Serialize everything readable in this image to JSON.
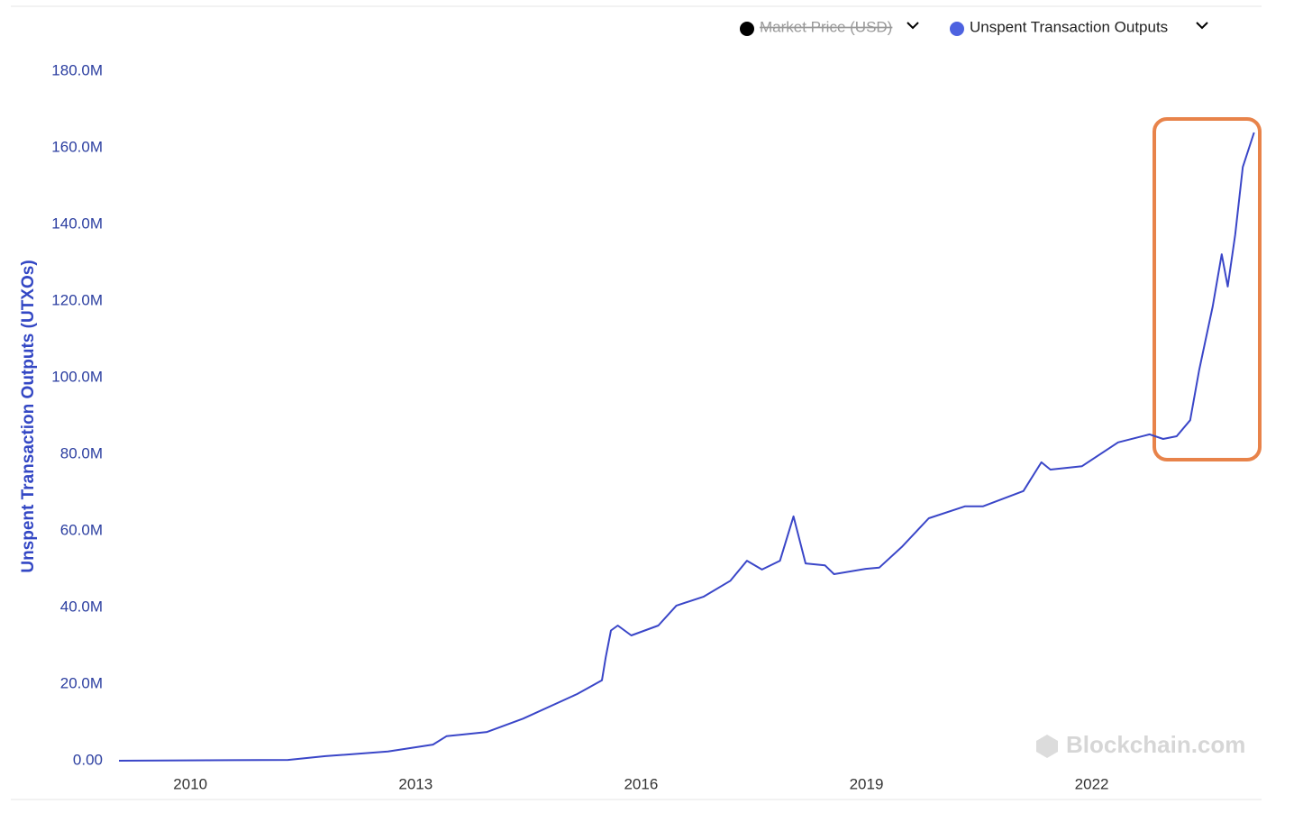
{
  "chart_data": {
    "type": "line",
    "y_label": "Unspent Transaction Outputs (UTXOs)",
    "watermark": "Blockchain.com",
    "hidden_series": {
      "name": "Market Price (USD)",
      "color": "#000000"
    },
    "x": [
      2009.05,
      2011.3,
      2011.8,
      2012.63,
      2013.23,
      2013.41,
      2013.95,
      2014.43,
      2015.15,
      2015.48,
      2015.53,
      2015.6,
      2015.69,
      2015.87,
      2016.23,
      2016.47,
      2016.83,
      2017.19,
      2017.41,
      2017.61,
      2017.85,
      2018.03,
      2018.19,
      2018.45,
      2018.57,
      2018.99,
      2019.17,
      2019.47,
      2019.83,
      2020.31,
      2020.55,
      2021.09,
      2021.33,
      2021.45,
      2021.87,
      2022.35,
      2022.77,
      2022.95,
      2023.13,
      2023.31,
      2023.43,
      2023.61,
      2023.73,
      2023.81,
      2023.91,
      2024.01,
      2024.16
    ],
    "series": [
      {
        "name": "Unspent Transaction Outputs",
        "color": "#3a46c8",
        "values": [
          0,
          200000,
          1200000,
          2400000,
          4200000,
          6400000,
          7500000,
          11000000,
          17400000,
          21000000,
          27000000,
          34000000,
          35300000,
          32700000,
          35300000,
          40500000,
          42800000,
          47000000,
          52200000,
          49900000,
          52200000,
          63800000,
          51500000,
          51000000,
          48700000,
          50100000,
          50400000,
          55800000,
          63300000,
          66400000,
          66400000,
          70400000,
          77900000,
          76000000,
          76900000,
          83100000,
          85200000,
          84000000,
          84700000,
          88900000,
          102000000,
          118600000,
          132200000,
          123800000,
          137400000,
          155000000,
          164000000
        ]
      }
    ],
    "xlim": [
      2009.05,
      2024.2
    ],
    "xticks": [
      2010,
      2013,
      2016,
      2019,
      2022
    ],
    "ylim": [
      0,
      180000000
    ],
    "yticks": [
      {
        "value": 0,
        "label": "0.00"
      },
      {
        "value": 20000000,
        "label": "20.0M"
      },
      {
        "value": 40000000,
        "label": "40.0M"
      },
      {
        "value": 60000000,
        "label": "60.0M"
      },
      {
        "value": 80000000,
        "label": "80.0M"
      },
      {
        "value": 100000000,
        "label": "100.0M"
      },
      {
        "value": 120000000,
        "label": "120.0M"
      },
      {
        "value": 140000000,
        "label": "140.0M"
      },
      {
        "value": 160000000,
        "label": "160.0M"
      },
      {
        "value": 180000000,
        "label": "180.0M"
      }
    ],
    "grid": false
  }
}
